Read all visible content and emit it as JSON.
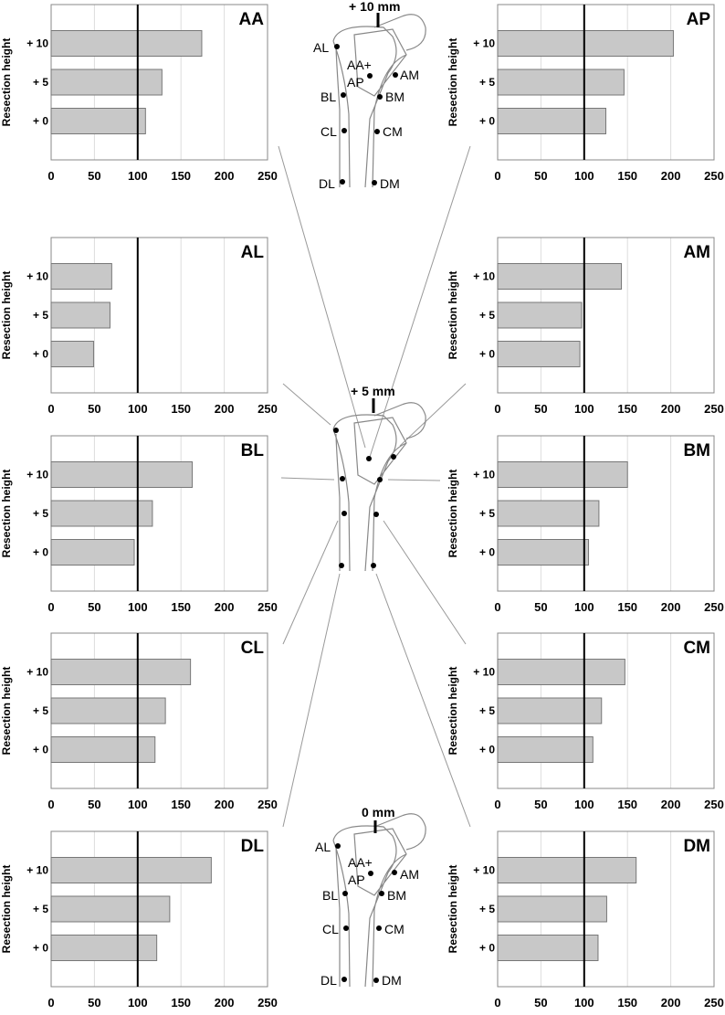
{
  "chart_data": [
    {
      "type": "bar",
      "orientation": "horizontal",
      "title": "AA",
      "ylabel": "Resection height",
      "categories": [
        "+ 10",
        "+ 5",
        "+ 0"
      ],
      "values": [
        174,
        128,
        109
      ],
      "color": "#c8c8c8",
      "xlim": [
        0,
        250
      ],
      "xticks": [
        0,
        50,
        100,
        150,
        200,
        250
      ],
      "reference_line": 100,
      "grid": true
    },
    {
      "type": "bar",
      "orientation": "horizontal",
      "title": "AP",
      "ylabel": "Resection height",
      "categories": [
        "+ 10",
        "+ 5",
        "+ 0"
      ],
      "values": [
        203,
        146,
        125
      ],
      "color": "#c8c8c8",
      "xlim": [
        0,
        250
      ],
      "xticks": [
        0,
        50,
        100,
        150,
        200,
        250
      ],
      "reference_line": 100,
      "grid": true
    },
    {
      "type": "bar",
      "orientation": "horizontal",
      "title": "AL",
      "ylabel": "Resection height",
      "categories": [
        "+ 10",
        "+ 5",
        "+ 0"
      ],
      "values": [
        70,
        68,
        49
      ],
      "color": "#c8c8c8",
      "xlim": [
        0,
        250
      ],
      "xticks": [
        0,
        50,
        100,
        150,
        200,
        250
      ],
      "reference_line": 100,
      "grid": true
    },
    {
      "type": "bar",
      "orientation": "horizontal",
      "title": "AM",
      "ylabel": "Resection height",
      "categories": [
        "+ 10",
        "+ 5",
        "+ 0"
      ],
      "values": [
        143,
        97,
        95
      ],
      "color": "#c8c8c8",
      "xlim": [
        0,
        250
      ],
      "xticks": [
        0,
        50,
        100,
        150,
        200,
        250
      ],
      "reference_line": 100,
      "grid": true
    },
    {
      "type": "bar",
      "orientation": "horizontal",
      "title": "BL",
      "ylabel": "Resection height",
      "categories": [
        "+ 10",
        "+ 5",
        "+ 0"
      ],
      "values": [
        163,
        117,
        96
      ],
      "color": "#c8c8c8",
      "xlim": [
        0,
        250
      ],
      "xticks": [
        0,
        50,
        100,
        150,
        200,
        250
      ],
      "reference_line": 100,
      "grid": true
    },
    {
      "type": "bar",
      "orientation": "horizontal",
      "title": "BM",
      "ylabel": "Resection height",
      "categories": [
        "+ 10",
        "+ 5",
        "+ 0"
      ],
      "values": [
        150,
        117,
        105
      ],
      "color": "#c8c8c8",
      "xlim": [
        0,
        250
      ],
      "xticks": [
        0,
        50,
        100,
        150,
        200,
        250
      ],
      "reference_line": 100,
      "grid": true
    },
    {
      "type": "bar",
      "orientation": "horizontal",
      "title": "CL",
      "ylabel": "Resection height",
      "categories": [
        "+ 10",
        "+ 5",
        "+ 0"
      ],
      "values": [
        161,
        132,
        120
      ],
      "color": "#c8c8c8",
      "xlim": [
        0,
        250
      ],
      "xticks": [
        0,
        50,
        100,
        150,
        200,
        250
      ],
      "reference_line": 100,
      "grid": true
    },
    {
      "type": "bar",
      "orientation": "horizontal",
      "title": "CM",
      "ylabel": "Resection height",
      "categories": [
        "+ 10",
        "+ 5",
        "+ 0"
      ],
      "values": [
        147,
        120,
        110
      ],
      "color": "#c8c8c8",
      "xlim": [
        0,
        250
      ],
      "xticks": [
        0,
        50,
        100,
        150,
        200,
        250
      ],
      "reference_line": 100,
      "grid": true
    },
    {
      "type": "bar",
      "orientation": "horizontal",
      "title": "DL",
      "ylabel": "Resection height",
      "categories": [
        "+ 10",
        "+ 5",
        "+ 0"
      ],
      "values": [
        185,
        137,
        122
      ],
      "color": "#c8c8c8",
      "xlim": [
        0,
        250
      ],
      "xticks": [
        0,
        50,
        100,
        150,
        200,
        250
      ],
      "reference_line": 100,
      "grid": true
    },
    {
      "type": "bar",
      "orientation": "horizontal",
      "title": "DM",
      "ylabel": "Resection height",
      "categories": [
        "+ 10",
        "+ 5",
        "+ 0"
      ],
      "values": [
        160,
        126,
        116
      ],
      "color": "#c8c8c8",
      "xlim": [
        0,
        250
      ],
      "xticks": [
        0,
        50,
        100,
        150,
        200,
        250
      ],
      "reference_line": 100,
      "grid": true
    }
  ],
  "diagrams": [
    {
      "caption": "+ 10 mm",
      "labels": [
        "AL",
        "AA+",
        "AP",
        "AM",
        "BL",
        "BM",
        "CL",
        "CM",
        "DL",
        "DM"
      ]
    },
    {
      "caption": "+ 5 mm"
    },
    {
      "caption": "0 mm",
      "labels": [
        "AL",
        "AA+",
        "AP",
        "AM",
        "BL",
        "BM",
        "CL",
        "CM",
        "DL",
        "DM"
      ]
    }
  ]
}
